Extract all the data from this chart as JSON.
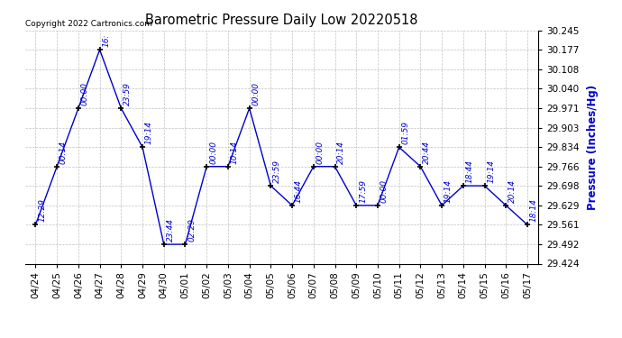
{
  "title": "Barometric Pressure Daily Low 20220518",
  "ylabel": "Pressure (Inches/Hg)",
  "copyright": "Copyright 2022 Cartronics.com",
  "dates": [
    "04/24",
    "04/25",
    "04/26",
    "04/27",
    "04/28",
    "04/29",
    "04/30",
    "05/01",
    "05/02",
    "05/03",
    "05/04",
    "05/05",
    "05/06",
    "05/07",
    "05/08",
    "05/09",
    "05/10",
    "05/11",
    "05/12",
    "05/13",
    "05/14",
    "05/15",
    "05/16",
    "05/17"
  ],
  "values": [
    29.561,
    29.766,
    29.971,
    30.177,
    29.971,
    29.834,
    29.492,
    29.492,
    29.766,
    29.766,
    29.971,
    29.698,
    29.629,
    29.766,
    29.766,
    29.629,
    29.629,
    29.834,
    29.766,
    29.629,
    29.698,
    29.698,
    29.629,
    29.561
  ],
  "times": [
    "12:29",
    "00:14",
    "00:00",
    "16:",
    "23:59",
    "19:14",
    "23:44",
    "02:29",
    "00:00",
    "10:14",
    "00:00",
    "23:59",
    "16:44",
    "00:00",
    "20:14",
    "17:59",
    "00:00",
    "01:59",
    "20:44",
    "19:14",
    "18:44",
    "19:14",
    "20:14",
    "18:14"
  ],
  "ylim_min": 29.424,
  "ylim_max": 30.245,
  "yticks": [
    29.424,
    29.492,
    29.561,
    29.629,
    29.698,
    29.766,
    29.834,
    29.903,
    29.971,
    30.04,
    30.108,
    30.177,
    30.245
  ],
  "line_color": "#0000cc",
  "marker_color": "#000000",
  "bg_color": "#ffffff",
  "grid_color": "#b0b0b0",
  "title_color": "#000000",
  "label_color": "#0000cc",
  "copyright_color": "#000000",
  "figwidth": 6.9,
  "figheight": 3.75,
  "dpi": 100
}
